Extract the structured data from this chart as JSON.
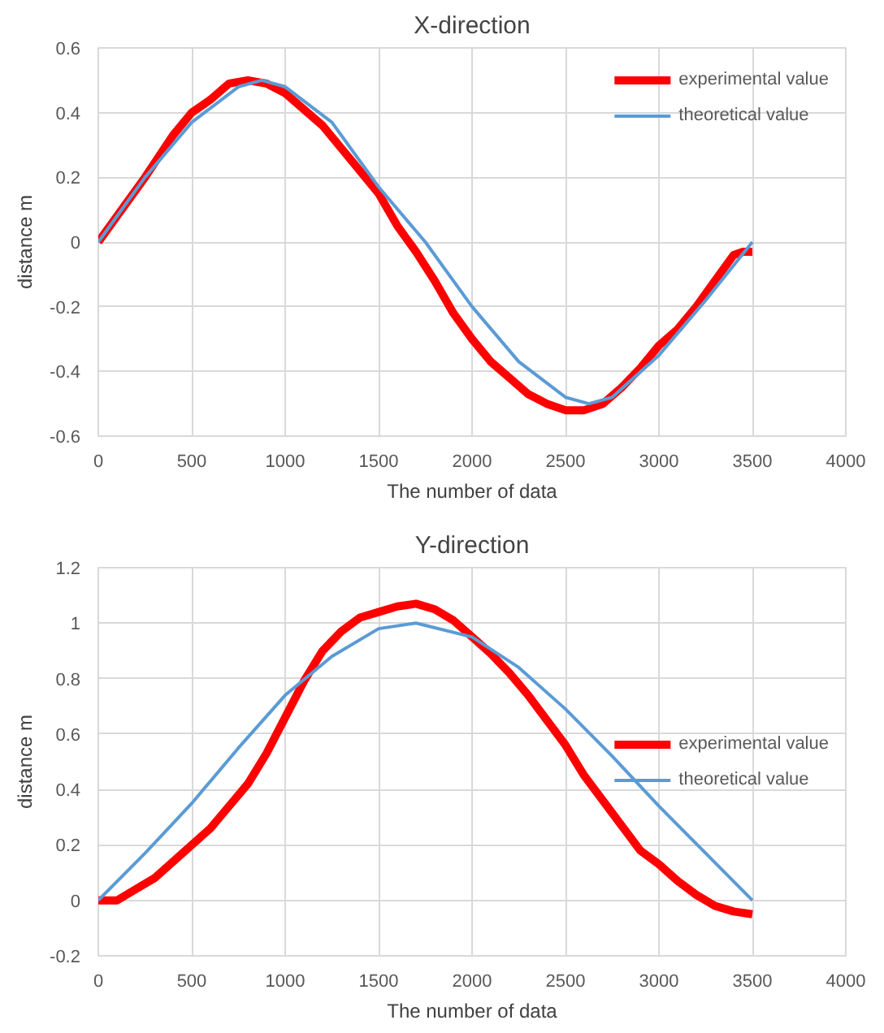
{
  "chart_data": [
    {
      "type": "line",
      "title": "X-direction",
      "xlabel": "The number of data",
      "ylabel": "distance m",
      "xlim": [
        0,
        4000
      ],
      "ylim": [
        -0.6,
        0.6
      ],
      "xticks": [
        0,
        500,
        1000,
        1500,
        2000,
        2500,
        3000,
        3500,
        4000
      ],
      "yticks": [
        -0.6,
        -0.4,
        -0.2,
        0,
        0.2,
        0.4,
        0.6
      ],
      "grid": true,
      "legend": "top right",
      "marker": "none",
      "line_style": "solid",
      "series": [
        {
          "name": "experimental value",
          "color": "#ff0000",
          "x": [
            0,
            100,
            250,
            400,
            500,
            600,
            700,
            800,
            900,
            1000,
            1200,
            1400,
            1500,
            1600,
            1700,
            1800,
            1900,
            2000,
            2100,
            2200,
            2300,
            2400,
            2500,
            2600,
            2700,
            2800,
            2900,
            3000,
            3100,
            3200,
            3300,
            3400,
            3450,
            3500
          ],
          "values": [
            0,
            0.08,
            0.2,
            0.33,
            0.4,
            0.44,
            0.49,
            0.5,
            0.49,
            0.46,
            0.36,
            0.22,
            0.15,
            0.05,
            -0.03,
            -0.12,
            -0.22,
            -0.3,
            -0.37,
            -0.42,
            -0.47,
            -0.5,
            -0.52,
            -0.52,
            -0.5,
            -0.45,
            -0.39,
            -0.32,
            -0.27,
            -0.2,
            -0.12,
            -0.04,
            -0.03,
            -0.03
          ]
        },
        {
          "name": "theoretical value",
          "color": "#5b9bd5",
          "x": [
            0,
            250,
            500,
            750,
            875,
            1000,
            1250,
            1500,
            1750,
            2000,
            2250,
            2500,
            2625,
            2750,
            3000,
            3250,
            3500
          ],
          "values": [
            0,
            0.2,
            0.37,
            0.48,
            0.5,
            0.48,
            0.37,
            0.17,
            0,
            -0.2,
            -0.37,
            -0.48,
            -0.5,
            -0.48,
            -0.35,
            -0.18,
            0
          ]
        }
      ]
    },
    {
      "type": "line",
      "title": "Y-direction",
      "xlabel": "The number of data",
      "ylabel": "distance m",
      "xlim": [
        0,
        4000
      ],
      "ylim": [
        -0.2,
        1.2
      ],
      "xticks": [
        0,
        500,
        1000,
        1500,
        2000,
        2500,
        3000,
        3500,
        4000
      ],
      "yticks": [
        -0.2,
        0,
        0.2,
        0.4,
        0.6,
        0.8,
        1,
        1.2
      ],
      "grid": true,
      "legend": "right",
      "marker": "none",
      "line_style": "solid",
      "series": [
        {
          "name": "experimental value",
          "color": "#ff0000",
          "x": [
            0,
            100,
            200,
            300,
            400,
            500,
            600,
            700,
            800,
            900,
            1000,
            1100,
            1200,
            1300,
            1400,
            1500,
            1600,
            1700,
            1800,
            1900,
            2000,
            2100,
            2200,
            2300,
            2400,
            2500,
            2600,
            2700,
            2800,
            2900,
            3000,
            3100,
            3200,
            3300,
            3400,
            3500
          ],
          "values": [
            0,
            0,
            0.04,
            0.08,
            0.14,
            0.2,
            0.26,
            0.34,
            0.42,
            0.53,
            0.66,
            0.79,
            0.9,
            0.97,
            1.02,
            1.04,
            1.06,
            1.07,
            1.05,
            1.01,
            0.95,
            0.89,
            0.82,
            0.74,
            0.65,
            0.56,
            0.45,
            0.36,
            0.27,
            0.18,
            0.13,
            0.07,
            0.02,
            -0.02,
            -0.04,
            -0.05
          ]
        },
        {
          "name": "theoretical value",
          "color": "#5b9bd5",
          "x": [
            0,
            250,
            500,
            750,
            1000,
            1250,
            1500,
            1700,
            2000,
            2250,
            2500,
            2750,
            3000,
            3250,
            3500
          ],
          "values": [
            0,
            0.17,
            0.35,
            0.55,
            0.74,
            0.88,
            0.98,
            1.0,
            0.95,
            0.84,
            0.69,
            0.52,
            0.34,
            0.17,
            0
          ]
        }
      ]
    }
  ]
}
